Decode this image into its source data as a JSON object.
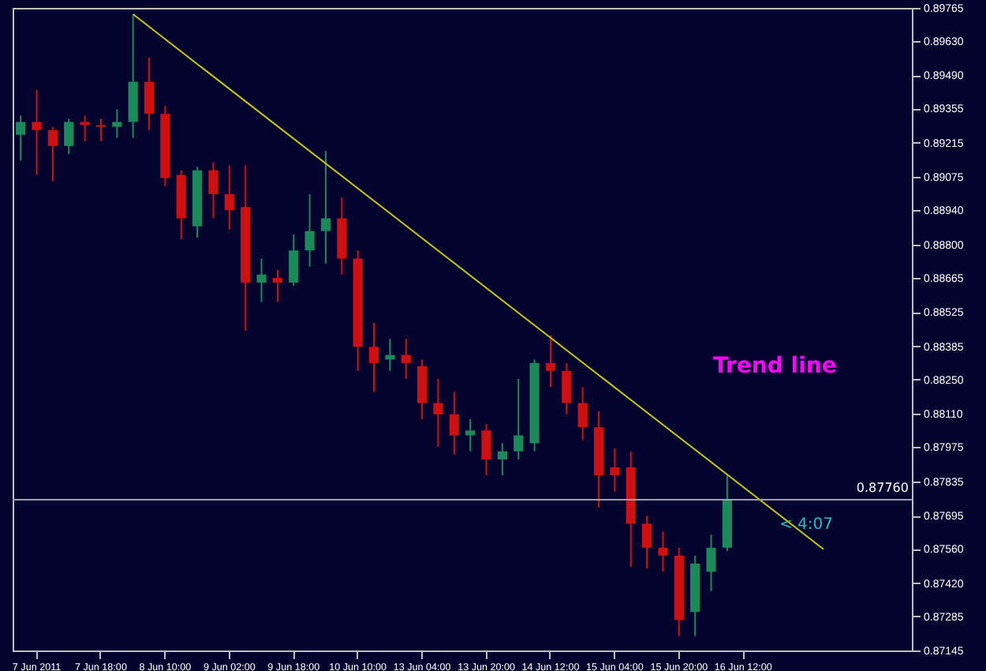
{
  "chart_data": {
    "type": "candlestick",
    "categories": [
      null,
      "7 Jun 2011",
      null,
      null,
      null,
      "7 Jun 18:00",
      null,
      null,
      null,
      "8 Jun 10:00",
      null,
      null,
      null,
      "9 Jun 02:00",
      null,
      null,
      null,
      "9 Jun 18:00",
      null,
      null,
      null,
      "10 Jun 10:00",
      null,
      null,
      null,
      "13 Jun 04:00",
      null,
      null,
      null,
      "13 Jun 20:00",
      null,
      null,
      null,
      "14 Jun 12:00",
      null,
      null,
      null,
      "15 Jun 04:00",
      null,
      null,
      null,
      "15 Jun 20:00",
      null,
      null,
      null,
      "16 Jun 12:00",
      null,
      null,
      null,
      null,
      null,
      null,
      null,
      null,
      null,
      null
    ],
    "ohlc": [
      [
        0.89248,
        0.89326,
        0.89143,
        0.893
      ],
      [
        0.893,
        0.89431,
        0.89084,
        0.89267
      ],
      [
        0.89267,
        0.8928,
        0.89058,
        0.89202
      ],
      [
        0.89202,
        0.89313,
        0.89169,
        0.893
      ],
      [
        0.893,
        0.89326,
        0.89221,
        0.89287
      ],
      [
        0.89287,
        0.89313,
        0.89221,
        0.8928
      ],
      [
        0.8928,
        0.89352,
        0.89235,
        0.893
      ],
      [
        0.893,
        0.89739,
        0.89235,
        0.89464
      ],
      [
        0.89464,
        0.89562,
        0.89267,
        0.89333
      ],
      [
        0.89333,
        0.89365,
        0.89038,
        0.89071
      ],
      [
        0.89084,
        0.89103,
        0.88822,
        0.88907
      ],
      [
        0.88874,
        0.89117,
        0.88828,
        0.89103
      ],
      [
        0.89103,
        0.89136,
        0.88907,
        0.89005
      ],
      [
        0.89005,
        0.89123,
        0.88861,
        0.8894
      ],
      [
        0.88953,
        0.89123,
        0.88448,
        0.88645
      ],
      [
        0.88645,
        0.88743,
        0.88566,
        0.88678
      ],
      [
        0.88664,
        0.88697,
        0.88566,
        0.88645
      ],
      [
        0.88645,
        0.88841,
        0.88632,
        0.88776
      ],
      [
        0.88776,
        0.89005,
        0.8871,
        0.88855
      ],
      [
        0.88855,
        0.89182,
        0.88723,
        0.88907
      ],
      [
        0.88907,
        0.88992,
        0.88678,
        0.88743
      ],
      [
        0.88743,
        0.88776,
        0.88285,
        0.88383
      ],
      [
        0.88383,
        0.88481,
        0.88199,
        0.88317
      ],
      [
        0.88331,
        0.88416,
        0.88285,
        0.8835
      ],
      [
        0.8835,
        0.88416,
        0.88252,
        0.88317
      ],
      [
        0.88304,
        0.88331,
        0.88088,
        0.88154
      ],
      [
        0.88154,
        0.88252,
        0.87976,
        0.88108
      ],
      [
        0.88108,
        0.88199,
        0.87944,
        0.88022
      ],
      [
        0.88022,
        0.88088,
        0.87957,
        0.88042
      ],
      [
        0.88042,
        0.88068,
        0.87859,
        0.87924
      ],
      [
        0.87924,
        0.8799,
        0.87859,
        0.87957
      ],
      [
        0.87957,
        0.88252,
        0.87924,
        0.88022
      ],
      [
        0.8799,
        0.88331,
        0.87957,
        0.88317
      ],
      [
        0.88317,
        0.88429,
        0.88219,
        0.88285
      ],
      [
        0.88285,
        0.88317,
        0.88108,
        0.88154
      ],
      [
        0.88154,
        0.88219,
        0.88003,
        0.88055
      ],
      [
        0.88055,
        0.88121,
        0.87728,
        0.87859
      ],
      [
        0.87892,
        0.8797,
        0.87793,
        0.87859
      ],
      [
        0.87892,
        0.87957,
        0.87486,
        0.87662
      ],
      [
        0.87662,
        0.87695,
        0.87479,
        0.87564
      ],
      [
        0.87564,
        0.8763,
        0.87466,
        0.87532
      ],
      [
        0.87532,
        0.87564,
        0.87204,
        0.87269
      ],
      [
        0.87302,
        0.87532,
        0.87204,
        0.87499
      ],
      [
        0.87466,
        0.87617,
        0.87387,
        0.87564
      ],
      [
        0.87564,
        0.87859,
        0.8755,
        0.8776
      ],
      null,
      null,
      null,
      null,
      null,
      null,
      null,
      null,
      null,
      null,
      null
    ],
    "series": [
      {
        "type": "line",
        "color": "#c8c800",
        "values": [
          null,
          null,
          null,
          null,
          null,
          null,
          null,
          0.89739,
          null,
          null,
          null,
          null,
          null,
          null,
          null,
          null,
          null,
          null,
          null,
          null,
          null,
          null,
          null,
          null,
          null,
          null,
          null,
          null,
          null,
          null,
          null,
          null,
          null,
          null,
          null,
          null,
          null,
          null,
          null,
          null,
          null,
          null,
          null,
          null,
          null,
          null,
          null,
          null,
          null,
          null,
          0.87558,
          null,
          null,
          null,
          null,
          null
        ]
      }
    ],
    "ylim": [
      0.87145,
      0.89765
    ],
    "yticks": [
      {
        "value": 0.89765,
        "label": "0.89765"
      },
      {
        "value": 0.8963,
        "label": "0.89630"
      },
      {
        "value": 0.8949,
        "label": "0.89490"
      },
      {
        "value": 0.89355,
        "label": "0.89355"
      },
      {
        "value": 0.89215,
        "label": "0.89215"
      },
      {
        "value": 0.89075,
        "label": "0.89075"
      },
      {
        "value": 0.8894,
        "label": "0.88940"
      },
      {
        "value": 0.888,
        "label": "0.88800"
      },
      {
        "value": 0.88665,
        "label": "0.88665"
      },
      {
        "value": 0.88525,
        "label": "0.88525"
      },
      {
        "value": 0.88385,
        "label": "0.88385"
      },
      {
        "value": 0.8825,
        "label": "0.88250"
      },
      {
        "value": 0.8811,
        "label": "0.88110"
      },
      {
        "value": 0.87975,
        "label": "0.87975"
      },
      {
        "value": 0.87835,
        "label": "0.87835"
      },
      {
        "value": 0.87695,
        "label": "0.87695"
      },
      {
        "value": 0.8756,
        "label": "0.87560"
      },
      {
        "value": 0.8742,
        "label": "0.87420"
      },
      {
        "value": 0.87285,
        "label": "0.87285"
      },
      {
        "value": 0.87145,
        "label": "0.87145"
      }
    ],
    "ref_lines": [
      {
        "axis": "y",
        "value": 0.8776,
        "label": "0.87760",
        "color": "#a0a0a0"
      }
    ],
    "annotations": [
      "Trend line",
      "< 4:07"
    ],
    "grid": false
  }
}
